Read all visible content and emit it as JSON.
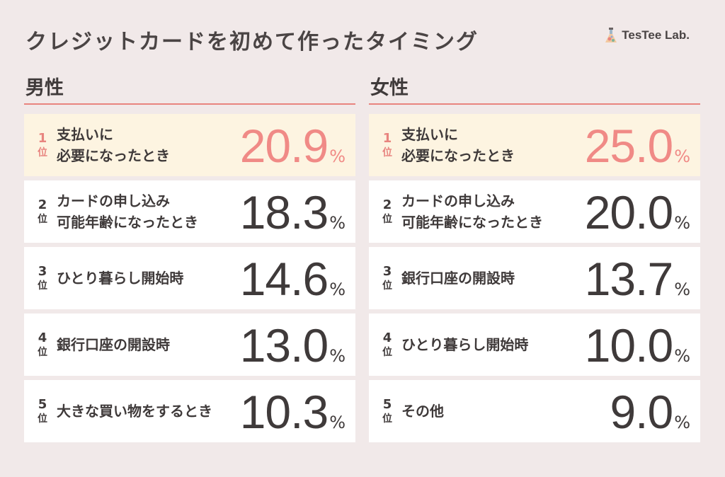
{
  "title": "クレジットカードを初めて作ったタイミング",
  "logo": {
    "text": "TesTee Lab."
  },
  "colors": {
    "accent": "#e8847f",
    "highlight_bg": "#fdf4e1",
    "page_bg": "#f1e9e9"
  },
  "rank_suffix": "位",
  "percent_sign": "%",
  "chart_data": [
    {
      "type": "table",
      "title": "男性",
      "rows": [
        {
          "rank": "1",
          "lines": [
            "支払いに",
            "必要になったとき"
          ],
          "value": "20.9"
        },
        {
          "rank": "2",
          "lines": [
            "カードの申し込み",
            "可能年齢になったとき"
          ],
          "value": "18.3"
        },
        {
          "rank": "3",
          "lines": [
            "ひとり暮らし開始時"
          ],
          "value": "14.6"
        },
        {
          "rank": "4",
          "lines": [
            "銀行口座の開設時"
          ],
          "value": "13.0"
        },
        {
          "rank": "5",
          "lines": [
            "大きな買い物をするとき"
          ],
          "value": "10.3"
        }
      ]
    },
    {
      "type": "table",
      "title": "女性",
      "rows": [
        {
          "rank": "1",
          "lines": [
            "支払いに",
            "必要になったとき"
          ],
          "value": "25.0"
        },
        {
          "rank": "2",
          "lines": [
            "カードの申し込み",
            "可能年齢になったとき"
          ],
          "value": "20.0"
        },
        {
          "rank": "3",
          "lines": [
            "銀行口座の開設時"
          ],
          "value": "13.7"
        },
        {
          "rank": "4",
          "lines": [
            "ひとり暮らし開始時"
          ],
          "value": "10.0"
        },
        {
          "rank": "5",
          "lines": [
            "その他"
          ],
          "value": "9.0"
        }
      ]
    }
  ]
}
